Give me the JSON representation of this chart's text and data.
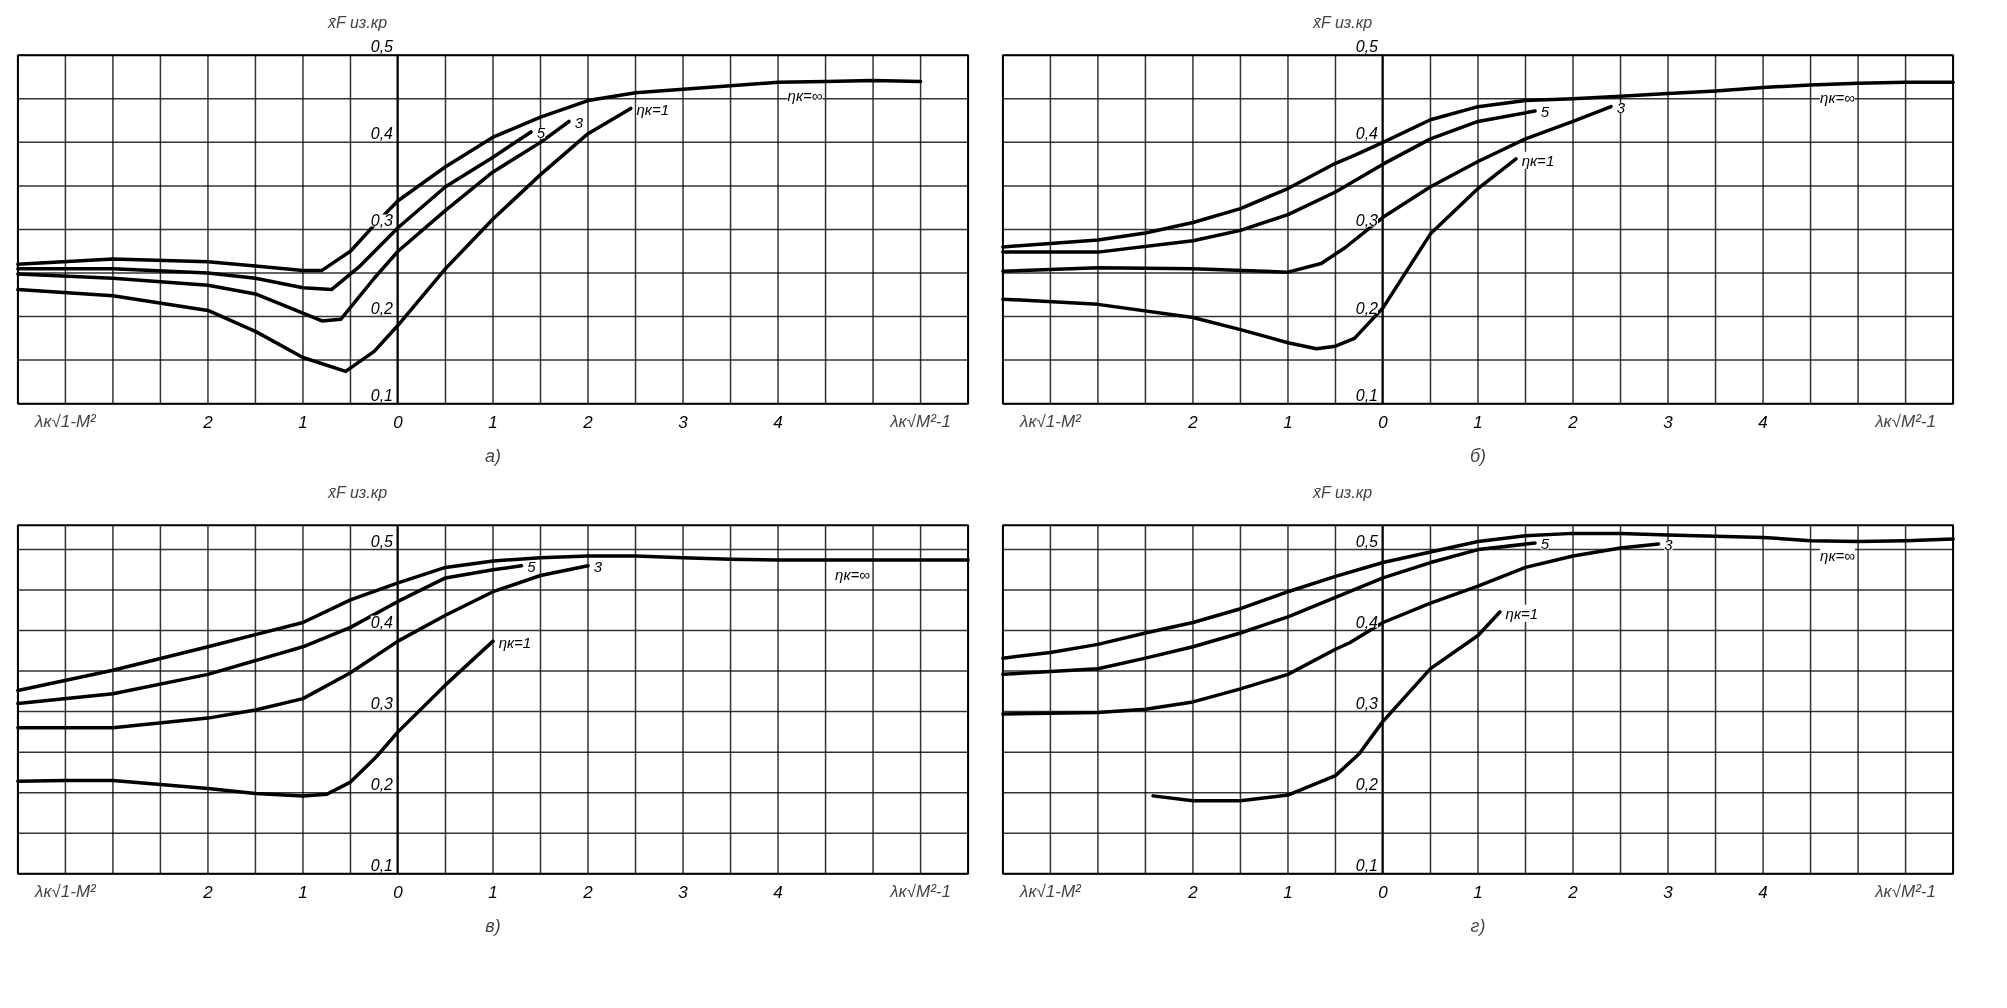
{
  "chart_data": [
    {
      "type": "line",
      "annotations": [
        "а)",
        "λк√1-M²",
        "λк√M²-1"
      ],
      "ylabel": "x̄F из.кр",
      "xlim": [
        -4,
        6
      ],
      "ylim": [
        0.1,
        0.5
      ],
      "grid": true,
      "legend": false,
      "xticks": [
        {
          "value": -4,
          "label": null
        },
        {
          "value": -3.5,
          "label": null
        },
        {
          "value": -3,
          "label": null
        },
        {
          "value": -2.5,
          "label": null
        },
        {
          "value": -2,
          "label": "2"
        },
        {
          "value": -1.5,
          "label": null
        },
        {
          "value": -1,
          "label": "1"
        },
        {
          "value": -0.5,
          "label": null
        },
        0,
        {
          "value": 0.5,
          "label": null
        },
        1,
        {
          "value": 1.5,
          "label": null
        },
        2,
        {
          "value": 2.5,
          "label": null
        },
        3,
        {
          "value": 3.5,
          "label": null
        },
        4,
        {
          "value": 4.5,
          "label": null
        },
        {
          "value": 5,
          "label": null
        },
        {
          "value": 5.5,
          "label": null
        },
        {
          "value": 6,
          "label": null
        }
      ],
      "yticks": [
        {
          "value": 0.1,
          "label": "0,1"
        },
        {
          "value": 0.15,
          "label": null
        },
        {
          "value": 0.2,
          "label": "0,2"
        },
        {
          "value": 0.25,
          "label": null
        },
        {
          "value": 0.3,
          "label": "0,3"
        },
        {
          "value": 0.35,
          "label": null
        },
        {
          "value": 0.4,
          "label": "0,4"
        },
        {
          "value": 0.45,
          "label": null
        },
        {
          "value": 0.5,
          "label": "0,5"
        }
      ],
      "series": [
        {
          "name": "ηк=∞",
          "color": "#000000",
          "x": [
            -4,
            -3,
            -2,
            -1.5,
            -1,
            -0.8,
            -0.5,
            -0.25,
            0,
            0.5,
            1,
            1.5,
            2,
            2.5,
            3,
            3.5,
            4,
            4.5,
            5,
            5.5
          ],
          "values": [
            0.26,
            0.266,
            0.263,
            0.258,
            0.253,
            0.253,
            0.275,
            0.305,
            0.333,
            0.372,
            0.406,
            0.429,
            0.448,
            0.457,
            0.461,
            0.465,
            0.469,
            0.47,
            0.471,
            0.47
          ]
        },
        {
          "name": "5",
          "color": "#000000",
          "x": [
            -4,
            -3,
            -2,
            -1.5,
            -1,
            -0.7,
            -0.4,
            0,
            0.5,
            1,
            1.4
          ],
          "values": [
            0.255,
            0.255,
            0.25,
            0.244,
            0.233,
            0.231,
            0.258,
            0.302,
            0.349,
            0.383,
            0.412
          ]
        },
        {
          "name": "3",
          "color": "#000000",
          "x": [
            -4,
            -3,
            -2,
            -1.5,
            -1,
            -0.8,
            -0.6,
            -0.25,
            0,
            0.5,
            1,
            1.5,
            1.8
          ],
          "values": [
            0.249,
            0.244,
            0.236,
            0.226,
            0.204,
            0.195,
            0.197,
            0.244,
            0.275,
            0.322,
            0.366,
            0.4,
            0.424
          ]
        },
        {
          "name": "ηк=1",
          "color": "#000000",
          "x": [
            -4,
            -3,
            -2,
            -1.5,
            -1,
            -0.55,
            -0.25,
            0,
            0.5,
            1,
            1.5,
            2,
            2.45
          ],
          "values": [
            0.231,
            0.224,
            0.207,
            0.183,
            0.153,
            0.137,
            0.16,
            0.19,
            0.255,
            0.312,
            0.363,
            0.41,
            0.439
          ]
        }
      ]
    },
    {
      "type": "line",
      "annotations": [
        "б)",
        "λк√1-M²",
        "λк√M²-1"
      ],
      "ylabel": "x̄F из.кр",
      "xlim": [
        -4,
        6
      ],
      "ylim": [
        0.1,
        0.5
      ],
      "grid": true,
      "legend": false,
      "xticks": [
        {
          "value": -4,
          "label": null
        },
        {
          "value": -3.5,
          "label": null
        },
        {
          "value": -3,
          "label": null
        },
        {
          "value": -2.5,
          "label": null
        },
        {
          "value": -2,
          "label": "2"
        },
        {
          "value": -1.5,
          "label": null
        },
        {
          "value": -1,
          "label": "1"
        },
        {
          "value": -0.5,
          "label": null
        },
        0,
        {
          "value": 0.5,
          "label": null
        },
        1,
        {
          "value": 1.5,
          "label": null
        },
        2,
        {
          "value": 2.5,
          "label": null
        },
        3,
        {
          "value": 3.5,
          "label": null
        },
        4,
        {
          "value": 4.5,
          "label": null
        },
        {
          "value": 5,
          "label": null
        },
        {
          "value": 5.5,
          "label": null
        },
        {
          "value": 6,
          "label": null
        }
      ],
      "yticks": [
        {
          "value": 0.1,
          "label": "0,1"
        },
        {
          "value": 0.15,
          "label": null
        },
        {
          "value": 0.2,
          "label": "0,2"
        },
        {
          "value": 0.25,
          "label": null
        },
        {
          "value": 0.3,
          "label": "0,3"
        },
        {
          "value": 0.35,
          "label": null
        },
        {
          "value": 0.4,
          "label": "0,4"
        },
        {
          "value": 0.45,
          "label": null
        },
        {
          "value": 0.5,
          "label": "0,5"
        }
      ],
      "series": [
        {
          "name": "ηк=∞",
          "color": "#000000",
          "x": [
            -4,
            -3,
            -2.5,
            -2,
            -1.5,
            -1,
            -0.5,
            -0.3,
            0,
            0.5,
            1,
            1.5,
            2,
            2.5,
            3,
            3.5,
            4,
            4.5,
            5,
            5.5,
            6
          ],
          "values": [
            0.28,
            0.288,
            0.296,
            0.308,
            0.324,
            0.347,
            0.376,
            0.385,
            0.4,
            0.426,
            0.441,
            0.448,
            0.45,
            0.453,
            0.456,
            0.459,
            0.463,
            0.466,
            0.468,
            0.469,
            0.469
          ]
        },
        {
          "name": "5",
          "color": "#000000",
          "x": [
            -4,
            -3,
            -2,
            -1.5,
            -1,
            -0.5,
            0,
            0.5,
            1,
            1.6
          ],
          "values": [
            0.274,
            0.274,
            0.287,
            0.299,
            0.317,
            0.343,
            0.375,
            0.404,
            0.424,
            0.436
          ]
        },
        {
          "name": "3",
          "color": "#000000",
          "x": [
            -4,
            -3,
            -2,
            -1,
            -0.65,
            -0.4,
            0,
            0.5,
            1,
            1.5,
            2,
            2.4
          ],
          "values": [
            0.252,
            0.256,
            0.255,
            0.251,
            0.261,
            0.279,
            0.314,
            0.349,
            0.378,
            0.404,
            0.424,
            0.441
          ]
        },
        {
          "name": "ηк=1",
          "color": "#000000",
          "x": [
            -4,
            -3,
            -2,
            -1.5,
            -1,
            -0.7,
            -0.5,
            -0.3,
            0,
            0.5,
            1,
            1.4
          ],
          "values": [
            0.22,
            0.214,
            0.199,
            0.185,
            0.17,
            0.163,
            0.166,
            0.175,
            0.21,
            0.295,
            0.347,
            0.381
          ]
        }
      ]
    },
    {
      "type": "line",
      "annotations": [
        "в)",
        "λк√1-M²",
        "λк√M²-1"
      ],
      "ylabel": "x̄F из.кр",
      "xlim": [
        -4,
        6
      ],
      "ylim": [
        0.1,
        0.53
      ],
      "grid": true,
      "legend": false,
      "xticks": [
        {
          "value": -4,
          "label": null
        },
        {
          "value": -3.5,
          "label": null
        },
        {
          "value": -3,
          "label": null
        },
        {
          "value": -2.5,
          "label": null
        },
        {
          "value": -2,
          "label": "2"
        },
        {
          "value": -1.5,
          "label": null
        },
        {
          "value": -1,
          "label": "1"
        },
        {
          "value": -0.5,
          "label": null
        },
        0,
        {
          "value": 0.5,
          "label": null
        },
        1,
        {
          "value": 1.5,
          "label": null
        },
        2,
        {
          "value": 2.5,
          "label": null
        },
        3,
        {
          "value": 3.5,
          "label": null
        },
        4,
        {
          "value": 4.5,
          "label": null
        },
        {
          "value": 5,
          "label": null
        },
        {
          "value": 5.5,
          "label": null
        },
        {
          "value": 6,
          "label": null
        }
      ],
      "yticks": [
        {
          "value": 0.1,
          "label": "0,1"
        },
        {
          "value": 0.15,
          "label": null
        },
        {
          "value": 0.2,
          "label": "0,2"
        },
        {
          "value": 0.25,
          "label": null
        },
        {
          "value": 0.3,
          "label": "0,3"
        },
        {
          "value": 0.35,
          "label": null
        },
        {
          "value": 0.4,
          "label": "0,4"
        },
        {
          "value": 0.45,
          "label": null
        },
        {
          "value": 0.5,
          "label": "0,5"
        }
      ],
      "series": [
        {
          "name": "ηк=∞",
          "color": "#000000",
          "x": [
            -4,
            -3,
            -2,
            -1,
            -0.5,
            0,
            0.5,
            1,
            1.5,
            2,
            2.5,
            3,
            3.5,
            4,
            4.5,
            5,
            6
          ],
          "values": [
            0.326,
            0.351,
            0.38,
            0.41,
            0.438,
            0.459,
            0.478,
            0.486,
            0.49,
            0.492,
            0.492,
            0.49,
            0.488,
            0.487,
            0.487,
            0.487,
            0.487
          ]
        },
        {
          "name": "5",
          "color": "#000000",
          "x": [
            -4,
            -3,
            -2,
            -1,
            -0.5,
            0,
            0.5,
            1,
            1.3
          ],
          "values": [
            0.31,
            0.322,
            0.346,
            0.38,
            0.404,
            0.436,
            0.465,
            0.475,
            0.48
          ]
        },
        {
          "name": "3",
          "color": "#000000",
          "x": [
            -4,
            -3,
            -2,
            -1.5,
            -1,
            -0.5,
            0,
            0.5,
            1,
            1.5,
            2
          ],
          "values": [
            0.28,
            0.28,
            0.292,
            0.302,
            0.316,
            0.348,
            0.387,
            0.419,
            0.448,
            0.468,
            0.48
          ]
        },
        {
          "name": "ηк=1",
          "color": "#000000",
          "x": [
            -4,
            -3.5,
            -3,
            -2,
            -1.5,
            -1,
            -0.75,
            -0.5,
            -0.23,
            0,
            0.5,
            1
          ],
          "values": [
            0.214,
            0.215,
            0.215,
            0.205,
            0.199,
            0.196,
            0.198,
            0.213,
            0.244,
            0.275,
            0.333,
            0.387
          ]
        }
      ]
    },
    {
      "type": "line",
      "annotations": [
        "г)",
        "λк√1-M²",
        "λк√M²-1"
      ],
      "ylabel": "x̄F из.кр",
      "xlim": [
        -4,
        6
      ],
      "ylim": [
        0.1,
        0.53
      ],
      "grid": true,
      "legend": false,
      "xticks": [
        {
          "value": -4,
          "label": null
        },
        {
          "value": -3.5,
          "label": null
        },
        {
          "value": -3,
          "label": null
        },
        {
          "value": -2.5,
          "label": null
        },
        {
          "value": -2,
          "label": "2"
        },
        {
          "value": -1.5,
          "label": null
        },
        {
          "value": -1,
          "label": "1"
        },
        {
          "value": -0.5,
          "label": null
        },
        0,
        {
          "value": 0.5,
          "label": null
        },
        1,
        {
          "value": 1.5,
          "label": null
        },
        2,
        {
          "value": 2.5,
          "label": null
        },
        3,
        {
          "value": 3.5,
          "label": null
        },
        4,
        {
          "value": 4.5,
          "label": null
        },
        {
          "value": 5,
          "label": null
        },
        {
          "value": 5.5,
          "label": null
        },
        {
          "value": 6,
          "label": null
        }
      ],
      "yticks": [
        {
          "value": 0.1,
          "label": "0,1"
        },
        {
          "value": 0.15,
          "label": null
        },
        {
          "value": 0.2,
          "label": "0,2"
        },
        {
          "value": 0.25,
          "label": null
        },
        {
          "value": 0.3,
          "label": "0,3"
        },
        {
          "value": 0.35,
          "label": null
        },
        {
          "value": 0.4,
          "label": "0,4"
        },
        {
          "value": 0.45,
          "label": null
        },
        {
          "value": 0.5,
          "label": "0,5"
        }
      ],
      "series": [
        {
          "name": "ηк=∞",
          "color": "#000000",
          "x": [
            -4,
            -3.5,
            -3,
            -2.5,
            -2,
            -1.5,
            -1,
            -0.5,
            0,
            0.5,
            1,
            1.5,
            2,
            2.5,
            3,
            4,
            4.5,
            5,
            5.5,
            6
          ],
          "values": [
            0.366,
            0.373,
            0.383,
            0.397,
            0.41,
            0.427,
            0.448,
            0.467,
            0.484,
            0.497,
            0.51,
            0.517,
            0.52,
            0.52,
            0.518,
            0.515,
            0.511,
            0.51,
            0.511,
            0.513
          ]
        },
        {
          "name": "5",
          "color": "#000000",
          "x": [
            -4,
            -3,
            -2.5,
            -2,
            -1.5,
            -1,
            -0.5,
            0,
            0.5,
            1,
            1.6
          ],
          "values": [
            0.346,
            0.353,
            0.366,
            0.38,
            0.397,
            0.417,
            0.441,
            0.465,
            0.484,
            0.5,
            0.508
          ]
        },
        {
          "name": "3",
          "color": "#000000",
          "x": [
            -4,
            -3,
            -2.5,
            -2,
            -1.5,
            -1,
            -0.5,
            -0.35,
            0,
            0.5,
            1,
            1.5,
            2,
            2.5,
            2.9
          ],
          "values": [
            0.297,
            0.299,
            0.303,
            0.312,
            0.328,
            0.346,
            0.377,
            0.385,
            0.41,
            0.434,
            0.455,
            0.478,
            0.492,
            0.502,
            0.507
          ]
        },
        {
          "name": "ηк=1",
          "color": "#000000",
          "x": [
            -2.42,
            -2,
            -1.5,
            -1,
            -0.5,
            -0.25,
            0,
            0.5,
            1,
            1.23
          ],
          "values": [
            0.196,
            0.19,
            0.19,
            0.197,
            0.221,
            0.248,
            0.288,
            0.353,
            0.394,
            0.423
          ]
        }
      ]
    }
  ]
}
